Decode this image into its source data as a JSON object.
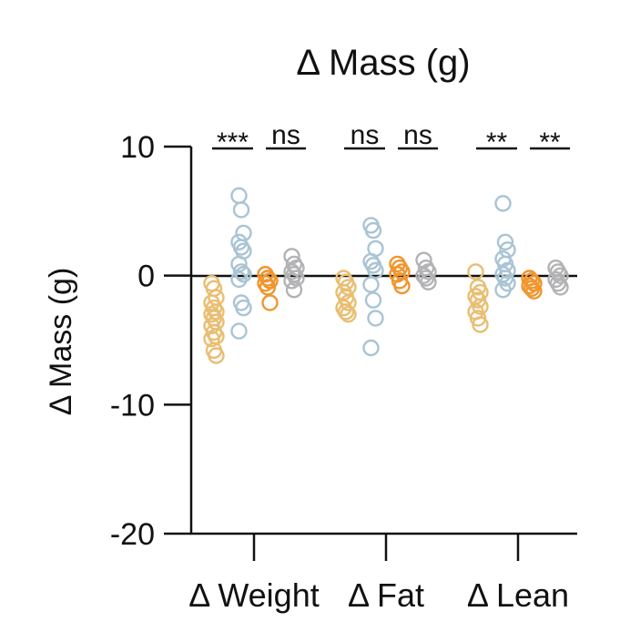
{
  "chart_data": {
    "type": "scatter",
    "title": "Δ Mass (g)",
    "ylabel": "Δ Mass (g)",
    "ylim": [
      -20,
      10
    ],
    "yticks": [
      10,
      0,
      -10,
      -20
    ],
    "ytick_labels": [
      "10",
      "0",
      "-10",
      "-20"
    ],
    "zero_line": true,
    "grid": false,
    "legend": "none",
    "categories": [
      "Δ Weight",
      "Δ Fat",
      "Δ Lean"
    ],
    "colors": [
      "#e9be72",
      "#a9c4d4",
      "#f0962e",
      "#b3b3b6"
    ],
    "groups": [
      {
        "label": "Δ Weight",
        "series": [
          {
            "color": "#e9be72",
            "values": [
              -0.6,
              -1.0,
              -1.7,
              -2.1,
              -2.5,
              -2.8,
              -3.0,
              -3.3,
              -3.6,
              -3.9,
              -4.4,
              -4.7,
              -4.9,
              -5.8,
              -6.2
            ]
          },
          {
            "color": "#a9c4d4",
            "values": [
              6.2,
              5.1,
              3.3,
              2.6,
              2.2,
              1.9,
              0.9,
              0.3,
              0.1,
              -0.3,
              -2.1,
              -2.5,
              -4.3
            ]
          },
          {
            "color": "#f0962e",
            "values": [
              0.1,
              -0.2,
              -0.4,
              -0.6,
              -0.9,
              -2.1
            ]
          },
          {
            "color": "#b3b3b6",
            "values": [
              1.5,
              0.9,
              0.6,
              0.3,
              0.1,
              -0.2,
              -0.4,
              -1.1
            ]
          }
        ],
        "significance": [
          "***",
          "ns"
        ]
      },
      {
        "label": "Δ Fat",
        "series": [
          {
            "color": "#e9be72",
            "values": [
              -0.2,
              -0.5,
              -0.9,
              -1.3,
              -1.7,
              -2.1,
              -2.5,
              -2.8,
              -3.0
            ]
          },
          {
            "color": "#a9c4d4",
            "values": [
              3.9,
              3.5,
              2.1,
              1.1,
              0.8,
              0.4,
              -0.7,
              -1.9,
              -3.3,
              -5.6
            ]
          },
          {
            "color": "#f0962e",
            "values": [
              0.9,
              0.6,
              0.3,
              0.1,
              -0.4,
              -0.8
            ]
          },
          {
            "color": "#b3b3b6",
            "values": [
              1.2,
              0.6,
              0.3,
              0.0,
              -0.2,
              -0.5
            ]
          }
        ],
        "significance": [
          "ns",
          "ns"
        ]
      },
      {
        "label": "Δ Lean",
        "series": [
          {
            "color": "#e9be72",
            "values": [
              0.3,
              -0.9,
              -1.3,
              -1.6,
              -1.9,
              -2.4,
              -2.8,
              -3.3,
              -3.8
            ]
          },
          {
            "color": "#a9c4d4",
            "values": [
              5.6,
              2.6,
              2.0,
              1.3,
              0.9,
              0.4,
              0.1,
              -0.2,
              -0.6,
              -1.1
            ]
          },
          {
            "color": "#f0962e",
            "values": [
              -0.2,
              -0.4,
              -0.6,
              -0.8,
              -1.0,
              -1.2
            ]
          },
          {
            "color": "#b3b3b6",
            "values": [
              0.6,
              0.3,
              0.0,
              -0.3,
              -0.6,
              -0.9
            ]
          }
        ],
        "significance": [
          "**",
          "**"
        ]
      }
    ]
  }
}
